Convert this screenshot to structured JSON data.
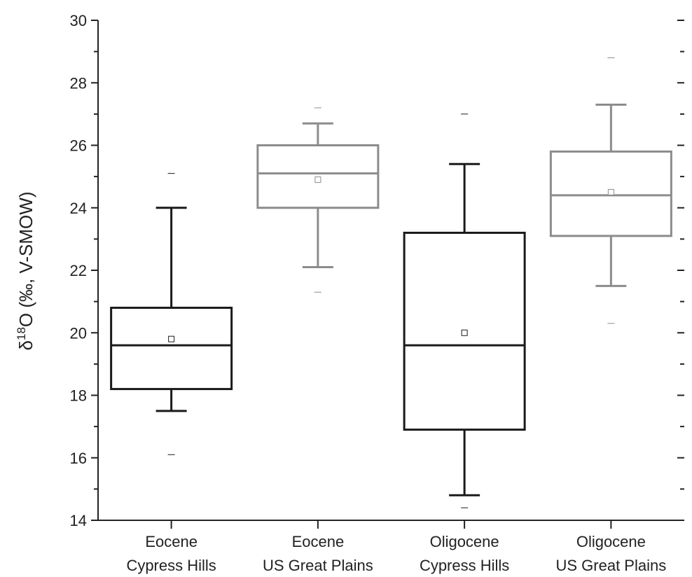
{
  "chart_data": {
    "type": "box",
    "ylabel_parts": {
      "pre": "δ",
      "sup": "18",
      "post": "O (‰, V-SMOW)"
    },
    "ylim": [
      14,
      30
    ],
    "yticks": [
      14,
      16,
      18,
      20,
      22,
      24,
      26,
      28,
      30
    ],
    "yticks_labels": [
      "14",
      "16",
      "18",
      "20",
      "22",
      "24",
      "26",
      "28",
      "30"
    ],
    "grid": false,
    "groups": [
      {
        "label_lines": [
          "Eocene",
          "Cypress Hills"
        ],
        "color": "#1a1a1a",
        "whisker_low": 17.5,
        "q1": 18.2,
        "median": 19.6,
        "q3": 20.8,
        "whisker_high": 24.0,
        "mean": 19.8,
        "min": 16.1,
        "max": 25.1
      },
      {
        "label_lines": [
          "Eocene",
          "US Great Plains"
        ],
        "color": "#8c8c8c",
        "whisker_low": 22.1,
        "q1": 24.0,
        "median": 25.1,
        "q3": 26.0,
        "whisker_high": 26.7,
        "mean": 24.9,
        "min": 21.3,
        "max": 27.2
      },
      {
        "label_lines": [
          "Oligocene",
          "Cypress Hills"
        ],
        "color": "#1a1a1a",
        "whisker_low": 14.8,
        "q1": 16.9,
        "median": 19.6,
        "q3": 23.2,
        "whisker_high": 25.4,
        "mean": 20.0,
        "min": 14.4,
        "max": 27.0
      },
      {
        "label_lines": [
          "Oligocene",
          "US Great Plains"
        ],
        "color": "#8c8c8c",
        "whisker_low": 21.5,
        "q1": 23.1,
        "median": 24.4,
        "q3": 25.8,
        "whisker_high": 27.3,
        "mean": 24.5,
        "min": 20.3,
        "max": 28.8
      }
    ]
  }
}
